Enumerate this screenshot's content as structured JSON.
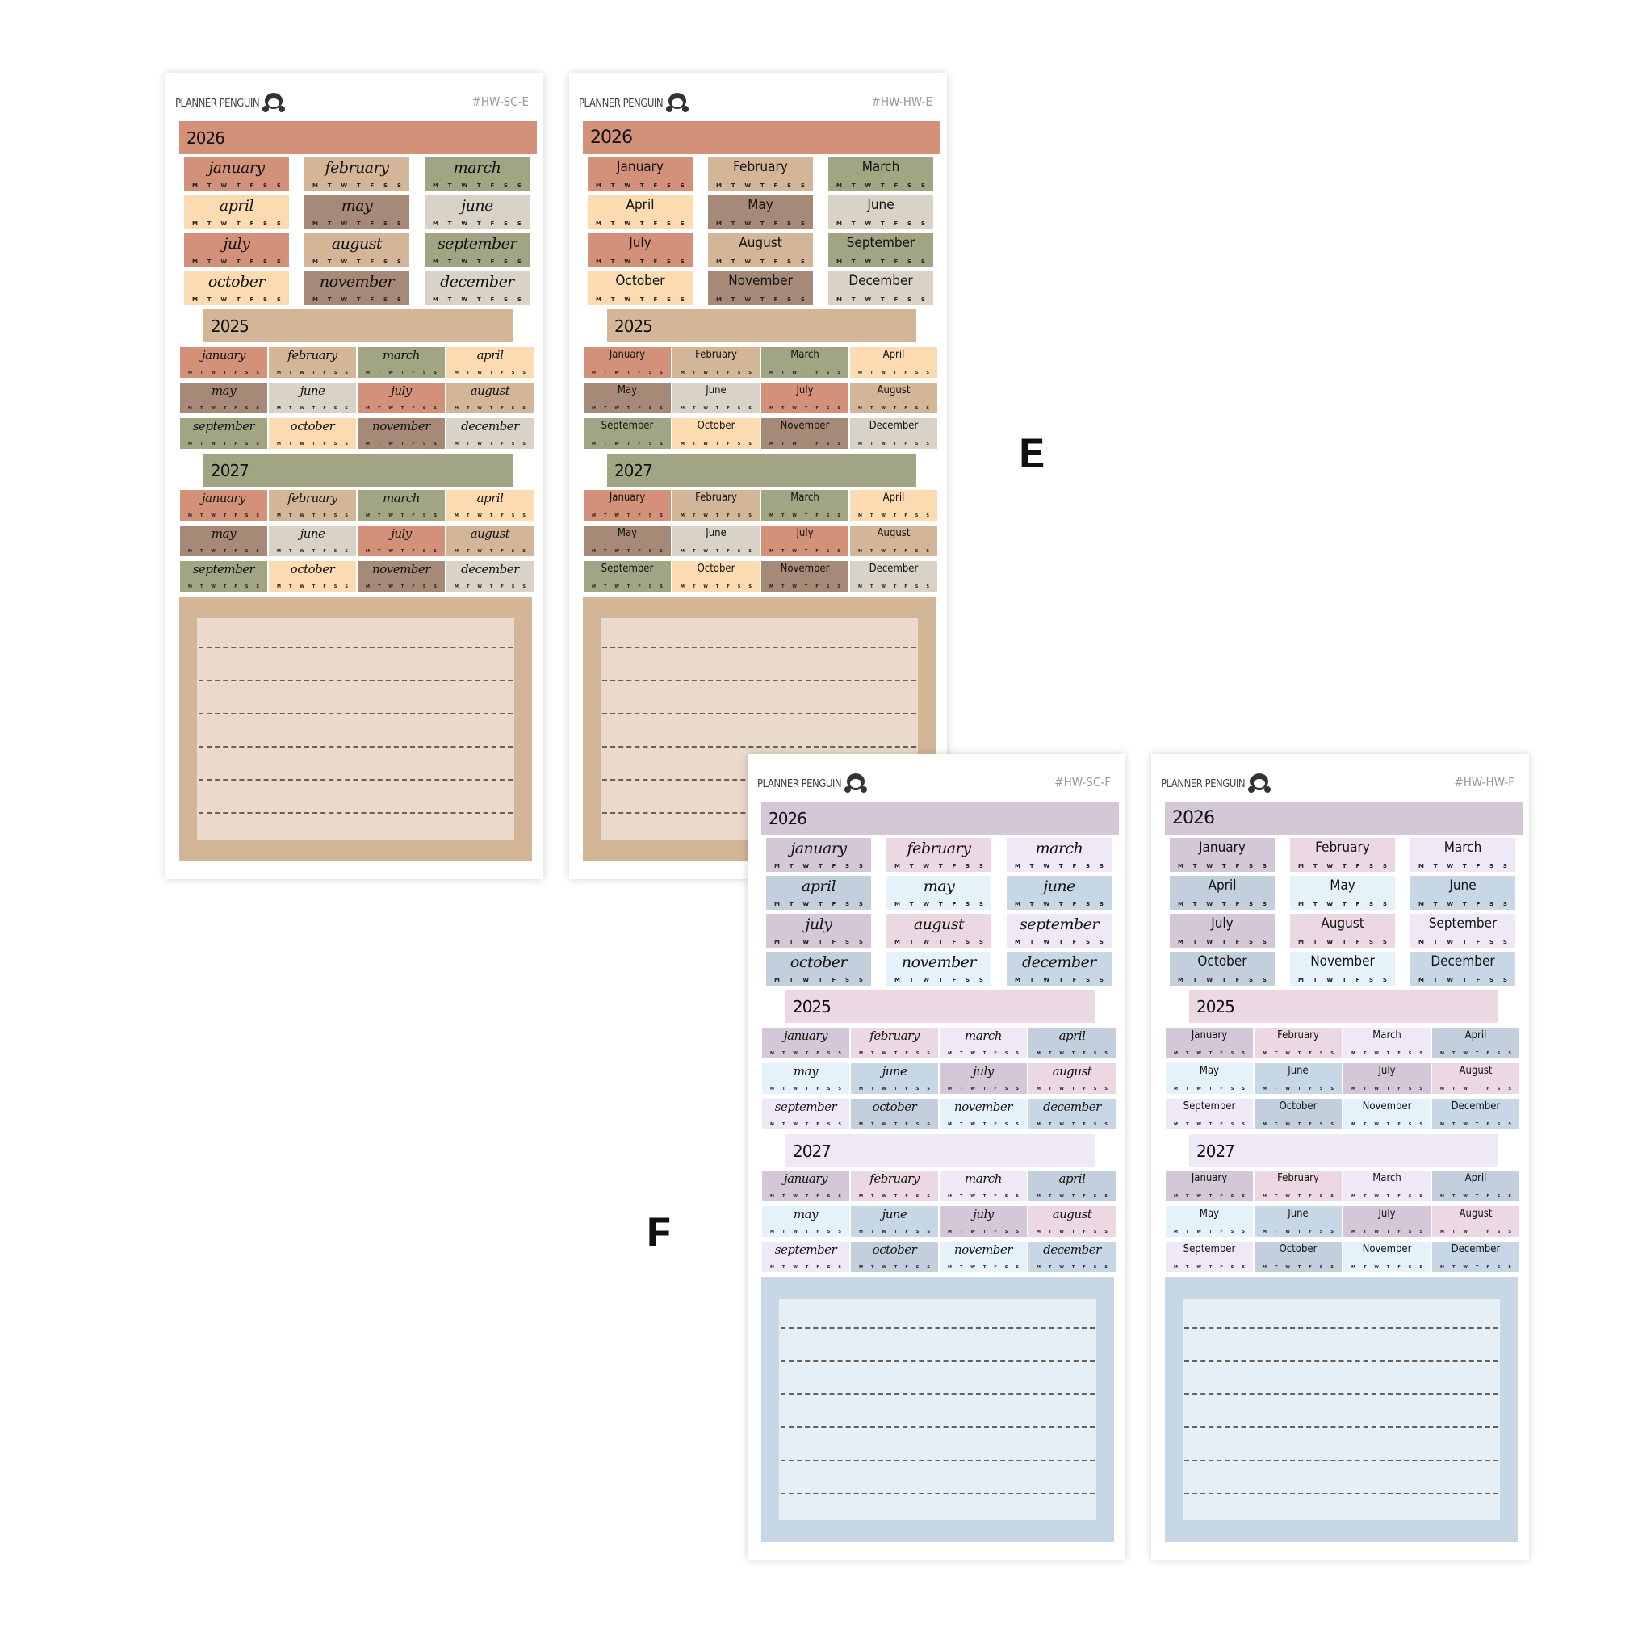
{
  "weekdays": [
    "M",
    "T",
    "W",
    "T",
    "F",
    "S",
    "S"
  ],
  "labels": [
    {
      "text": "E"
    },
    {
      "text": "F"
    }
  ],
  "palettes": {
    "E": {
      "months": [
        "#d4917a",
        "#d3b597",
        "#a2a584",
        "#fcdbb0",
        "#a68a77",
        "#d8d3c6"
      ],
      "years": {
        "2026": "#d4917a",
        "2025": "#d3b597",
        "2027": "#a2a584"
      },
      "notes_outer": "#d3b597",
      "notes_inner": "#e9dacb"
    },
    "F": {
      "months": [
        "#d4c8d8",
        "#ecd8e3",
        "#efe8f6",
        "#c4cfdd",
        "#e6f2fa",
        "#c8d7e6"
      ],
      "years": {
        "2026": "#d4c8d8",
        "2025": "#ecd8e3",
        "2027": "#efe8f6"
      },
      "notes_outer": "#c8d7e6",
      "notes_inner": "#e6eef6"
    }
  },
  "sheets": [
    {
      "brand": "PLANNER PENGUIN",
      "code": "#HW-SC-E",
      "palette": "E",
      "style": "script",
      "years": [
        {
          "label": "2026",
          "months": [
            "january",
            "february",
            "march",
            "april",
            "may",
            "june",
            "july",
            "august",
            "september",
            "october",
            "november",
            "december"
          ]
        },
        {
          "label": "2025",
          "months": [
            "january",
            "february",
            "march",
            "april",
            "may",
            "june",
            "july",
            "august",
            "september",
            "october",
            "november",
            "december"
          ]
        },
        {
          "label": "2027",
          "months": [
            "january",
            "february",
            "march",
            "april",
            "may",
            "june",
            "july",
            "august",
            "september",
            "october",
            "november",
            "december"
          ]
        }
      ]
    },
    {
      "brand": "PLANNER PENGUIN",
      "code": "#HW-HW-E",
      "palette": "E",
      "style": "print",
      "years": [
        {
          "label": "2026",
          "months": [
            "January",
            "February",
            "March",
            "April",
            "May",
            "June",
            "July",
            "August",
            "September",
            "October",
            "November",
            "December"
          ]
        },
        {
          "label": "2025",
          "months": [
            "January",
            "February",
            "March",
            "April",
            "May",
            "June",
            "July",
            "August",
            "September",
            "October",
            "November",
            "December"
          ]
        },
        {
          "label": "2027",
          "months": [
            "January",
            "February",
            "March",
            "April",
            "May",
            "June",
            "July",
            "August",
            "September",
            "October",
            "November",
            "December"
          ]
        }
      ]
    },
    {
      "brand": "PLANNER PENGUIN",
      "code": "#HW-SC-F",
      "palette": "F",
      "style": "script",
      "years": [
        {
          "label": "2026",
          "months": [
            "january",
            "february",
            "march",
            "april",
            "may",
            "june",
            "july",
            "august",
            "september",
            "october",
            "november",
            "december"
          ]
        },
        {
          "label": "2025",
          "months": [
            "january",
            "february",
            "march",
            "april",
            "may",
            "june",
            "july",
            "august",
            "september",
            "october",
            "november",
            "december"
          ]
        },
        {
          "label": "2027",
          "months": [
            "january",
            "february",
            "march",
            "april",
            "may",
            "june",
            "july",
            "august",
            "september",
            "october",
            "november",
            "december"
          ]
        }
      ]
    },
    {
      "brand": "PLANNER PENGUIN",
      "code": "#HW-HW-F",
      "palette": "F",
      "style": "print",
      "years": [
        {
          "label": "2026",
          "months": [
            "January",
            "February",
            "March",
            "April",
            "May",
            "June",
            "July",
            "August",
            "September",
            "October",
            "November",
            "December"
          ]
        },
        {
          "label": "2025",
          "months": [
            "January",
            "February",
            "March",
            "April",
            "May",
            "June",
            "July",
            "August",
            "September",
            "October",
            "November",
            "December"
          ]
        },
        {
          "label": "2027",
          "months": [
            "January",
            "February",
            "March",
            "April",
            "May",
            "June",
            "July",
            "August",
            "September",
            "October",
            "November",
            "December"
          ]
        }
      ]
    }
  ]
}
